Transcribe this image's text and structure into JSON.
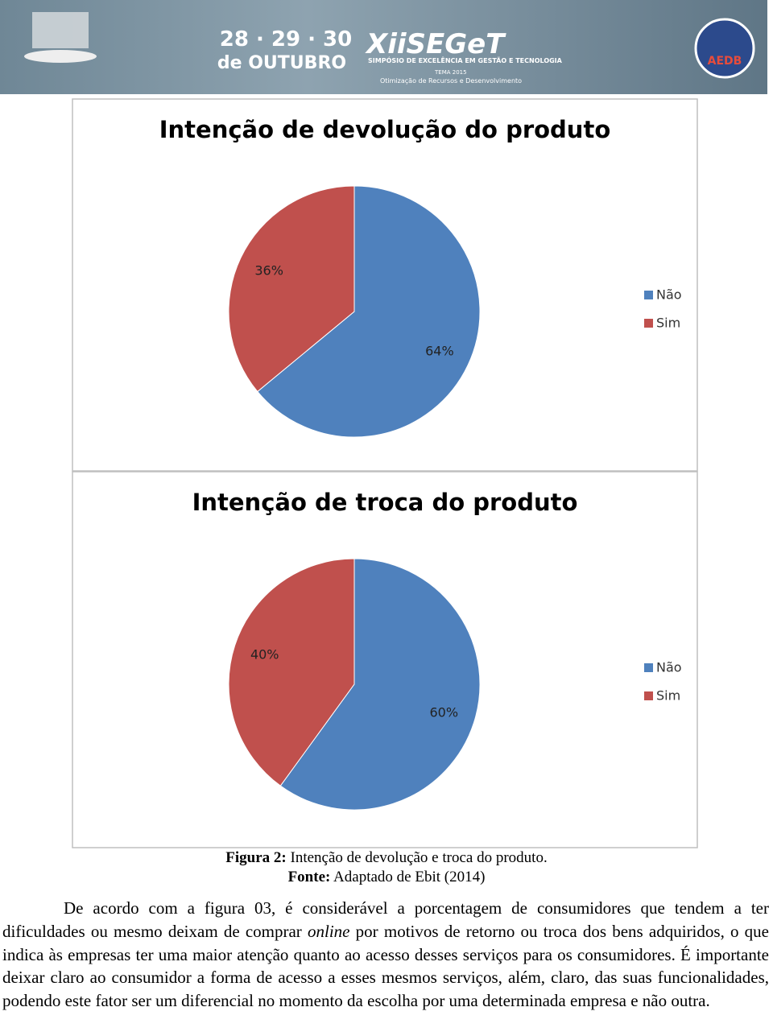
{
  "header": {
    "dates": "28 · 29 · 30",
    "month": "de OUTUBRO",
    "event": "XiiSEGeT",
    "event_subtitle": "SIMPÓSIO DE EXCELÊNCIA EM GESTÃO E TECNOLOGIA",
    "theme_label": "TEMA 2015",
    "theme": "Otimização de Recursos e Desenvolvimento",
    "logo": "AEDB"
  },
  "chart_data": [
    {
      "type": "pie",
      "title": "Intenção de devolução do produto",
      "categories": [
        "Não",
        "Sim"
      ],
      "values": [
        64,
        36
      ],
      "value_labels": [
        "64%",
        "36%"
      ],
      "colors": [
        "#4f81bd",
        "#c0504d"
      ],
      "legend": "right"
    },
    {
      "type": "pie",
      "title": "Intenção de troca do produto",
      "categories": [
        "Não",
        "Sim"
      ],
      "values": [
        60,
        40
      ],
      "value_labels": [
        "60%",
        "40%"
      ],
      "colors": [
        "#4f81bd",
        "#c0504d"
      ],
      "legend": "right"
    }
  ],
  "caption": {
    "label": "Figura 2:",
    "text": " Intenção de devolução e troca do produto.",
    "source_label": "Fonte:",
    "source": " Adaptado de Ebit (2014)"
  },
  "paragraph": [
    "De acordo com a figura 03, é considerável a porcentagem de consumidores que tendem a ter dificuldades ou mesmo deixam de comprar ",
    "online",
    " por motivos de retorno ou troca dos bens adquiridos, o que indica às empresas ter uma maior atenção quanto ao acesso desses serviços para os consumidores. É importante deixar claro ao consumidor a forma de acesso a esses mesmos serviços, além, claro, das suas funcionalidades, podendo este fator ser um diferencial no momento da escolha por uma determinada empresa e não outra."
  ]
}
